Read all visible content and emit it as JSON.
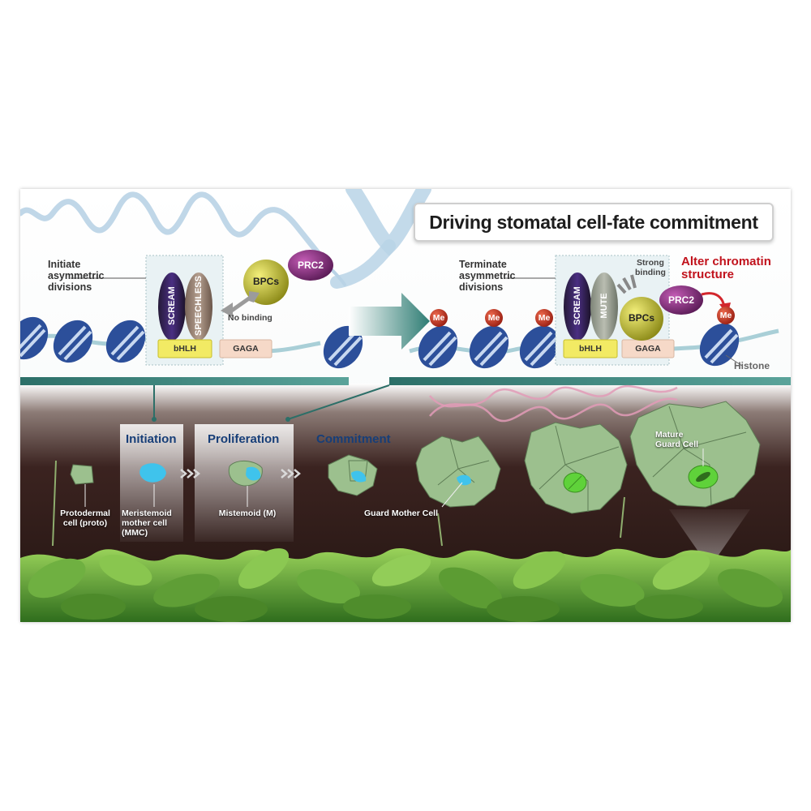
{
  "title": "Driving stomatal cell-fate commitment",
  "left_panel": {
    "annotation": [
      "Initiate",
      "asymmetric",
      "divisions"
    ],
    "proteins": {
      "scream": "SCREAM",
      "speechless": "SPEECHLESS",
      "bpcs": "BPCs",
      "prc2": "PRC2"
    },
    "boxes": {
      "bhlh": "bHLH",
      "gaga": "GAGA"
    },
    "no_binding": "No binding"
  },
  "right_panel": {
    "annotation": [
      "Terminate",
      "asymmetric",
      "divisions"
    ],
    "proteins": {
      "scream": "SCREAM",
      "mute": "MUTE",
      "bpcs": "BPCs",
      "prc2": "PRC2"
    },
    "boxes": {
      "bhlh": "bHLH",
      "gaga": "GAGA"
    },
    "strong_binding": [
      "Strong",
      "binding"
    ],
    "alter_chromatin": [
      "Alter chromatin",
      "structure"
    ],
    "me": "Me",
    "histone": "Histone"
  },
  "stages": {
    "initiation": "Initiation",
    "proliferation": "Proliferation",
    "commitment": "Commitment"
  },
  "cells": {
    "proto": [
      "Protodermal",
      "cell (proto)"
    ],
    "mmc": [
      "Meristemoid",
      "mother cell",
      "(MMC)"
    ],
    "meristemoid": "Mistemoid (M)",
    "gmc": "Guard Mother Cell",
    "mature": [
      "Mature",
      "Guard Cell"
    ]
  },
  "colors": {
    "cell_green": "#9cc08e",
    "meristemoid_cyan": "#3fc3ec",
    "guard_green": "#5fd23a",
    "title_red": "#c1121c",
    "stage_blue": "#173e78",
    "dna_teal": "#2f7d74"
  }
}
